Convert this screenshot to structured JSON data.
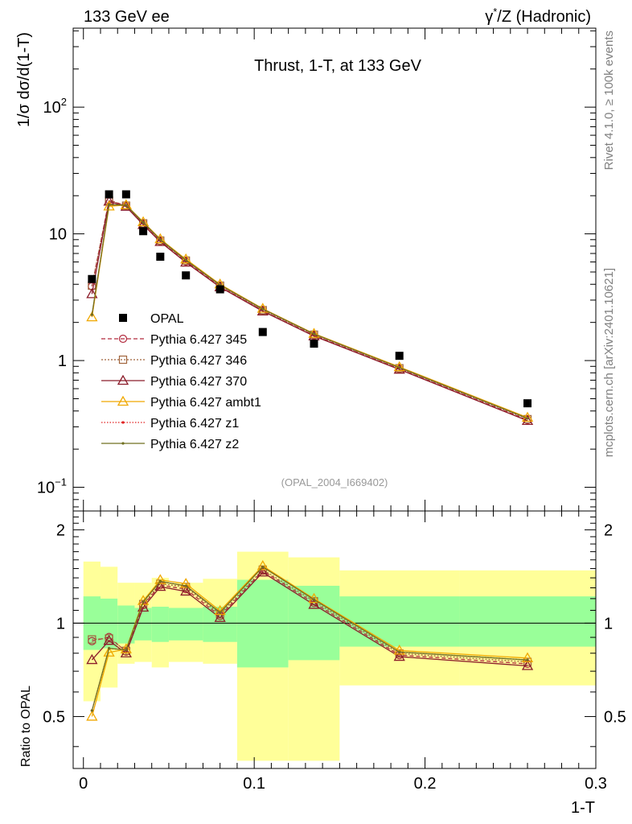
{
  "header": {
    "left": "133 GeV ee",
    "right_pre": "γ",
    "right_sup": "*",
    "right_post": "/Z (Hadronic)"
  },
  "side_labels": {
    "rivet": "Rivet 4.1.0, ≥ 100k events",
    "mcplots": "mcplots.cern.ch [arXiv:2401.10621]"
  },
  "chart_data": {
    "type": "line",
    "title": "Thrust, 1-T, at 133 GeV",
    "analysis_tag": "(OPAL_2004_I669402)",
    "xlabel": "1-T",
    "ylabel": "1/σ  dσ/d(1-T)",
    "ratio_ylabel": "Ratio to OPAL",
    "xlim": [
      -0.006,
      0.3
    ],
    "ylim_main": [
      0.065,
      420
    ],
    "ylim_ratio": [
      0.34,
      2.3
    ],
    "x_ticks": [
      0,
      0.1,
      0.2,
      0.3
    ],
    "x_tick_labels": [
      "0",
      "0.1",
      "0.2",
      "0.3"
    ],
    "main_y_tick_labels": [
      "10⁻¹",
      "1",
      "10",
      "10²"
    ],
    "ratio_y_ticks": [
      0.5,
      1,
      2
    ],
    "ratio_y_tick_labels": [
      "0.5",
      "1",
      "2"
    ],
    "bin_edges": [
      0,
      0.01,
      0.02,
      0.03,
      0.04,
      0.05,
      0.07,
      0.09,
      0.12,
      0.15,
      0.22,
      0.3
    ],
    "x": [
      0.005,
      0.015,
      0.025,
      0.035,
      0.045,
      0.06,
      0.08,
      0.105,
      0.135,
      0.185,
      0.26
    ],
    "data": {
      "name": "OPAL",
      "values": [
        4.4,
        20.5,
        20.5,
        10.5,
        6.6,
        4.7,
        3.65,
        1.68,
        1.36,
        1.09,
        0.46
      ]
    },
    "band_inner": [
      [
        0.82,
        1.22
      ],
      [
        0.83,
        1.2
      ],
      [
        0.86,
        1.14
      ],
      [
        0.88,
        1.12
      ],
      [
        0.87,
        1.13
      ],
      [
        0.88,
        1.12
      ],
      [
        0.87,
        1.13
      ],
      [
        0.72,
        1.38
      ],
      [
        0.76,
        1.32
      ],
      [
        0.84,
        1.22
      ],
      [
        0.84,
        1.22
      ]
    ],
    "band_outer": [
      [
        0.56,
        1.58
      ],
      [
        0.62,
        1.52
      ],
      [
        0.74,
        1.35
      ],
      [
        0.75,
        1.35
      ],
      [
        0.72,
        1.4
      ],
      [
        0.75,
        1.35
      ],
      [
        0.74,
        1.39
      ],
      [
        0.36,
        1.7
      ],
      [
        0.36,
        1.63
      ],
      [
        0.63,
        1.48
      ],
      [
        0.63,
        1.48
      ]
    ],
    "series": [
      {
        "name": "Pythia 6.427 345",
        "color": "#b22a3e",
        "dash": "5,3",
        "marker": "circle",
        "values": [
          3.85,
          18.5,
          16.6,
          12.0,
          8.75,
          6.05,
          3.85,
          2.48,
          1.58,
          0.86,
          0.34
        ]
      },
      {
        "name": "Pythia 6.427 346",
        "color": "#a0643c",
        "dash": "2,2",
        "marker": "square",
        "values": [
          3.9,
          18.3,
          16.7,
          12.1,
          8.85,
          6.15,
          3.9,
          2.5,
          1.6,
          0.87,
          0.345
        ]
      },
      {
        "name": "Pythia 6.427 370",
        "color": "#8b1c2a",
        "dash": "",
        "marker": "triangle",
        "values": [
          3.35,
          18.0,
          16.4,
          11.8,
          8.65,
          5.95,
          3.8,
          2.45,
          1.56,
          0.85,
          0.335
        ]
      },
      {
        "name": "Pythia 6.427 ambt1",
        "color": "#f0a800",
        "dash": "",
        "marker": "triangle",
        "values": [
          2.2,
          16.5,
          16.9,
          12.4,
          9.1,
          6.3,
          4.0,
          2.57,
          1.63,
          0.89,
          0.355
        ]
      },
      {
        "name": "Pythia 6.427 z1",
        "color": "#e02020",
        "dash": "1.5,2",
        "marker": "dot",
        "values": [
          2.3,
          17.0,
          16.8,
          12.3,
          9.0,
          6.2,
          3.95,
          2.55,
          1.62,
          0.88,
          0.35
        ]
      },
      {
        "name": "Pythia 6.427 z2",
        "color": "#707020",
        "dash": "",
        "marker": "dot",
        "values": [
          2.3,
          17.0,
          16.8,
          12.3,
          9.0,
          6.2,
          3.95,
          2.55,
          1.62,
          0.88,
          0.35
        ]
      }
    ]
  }
}
